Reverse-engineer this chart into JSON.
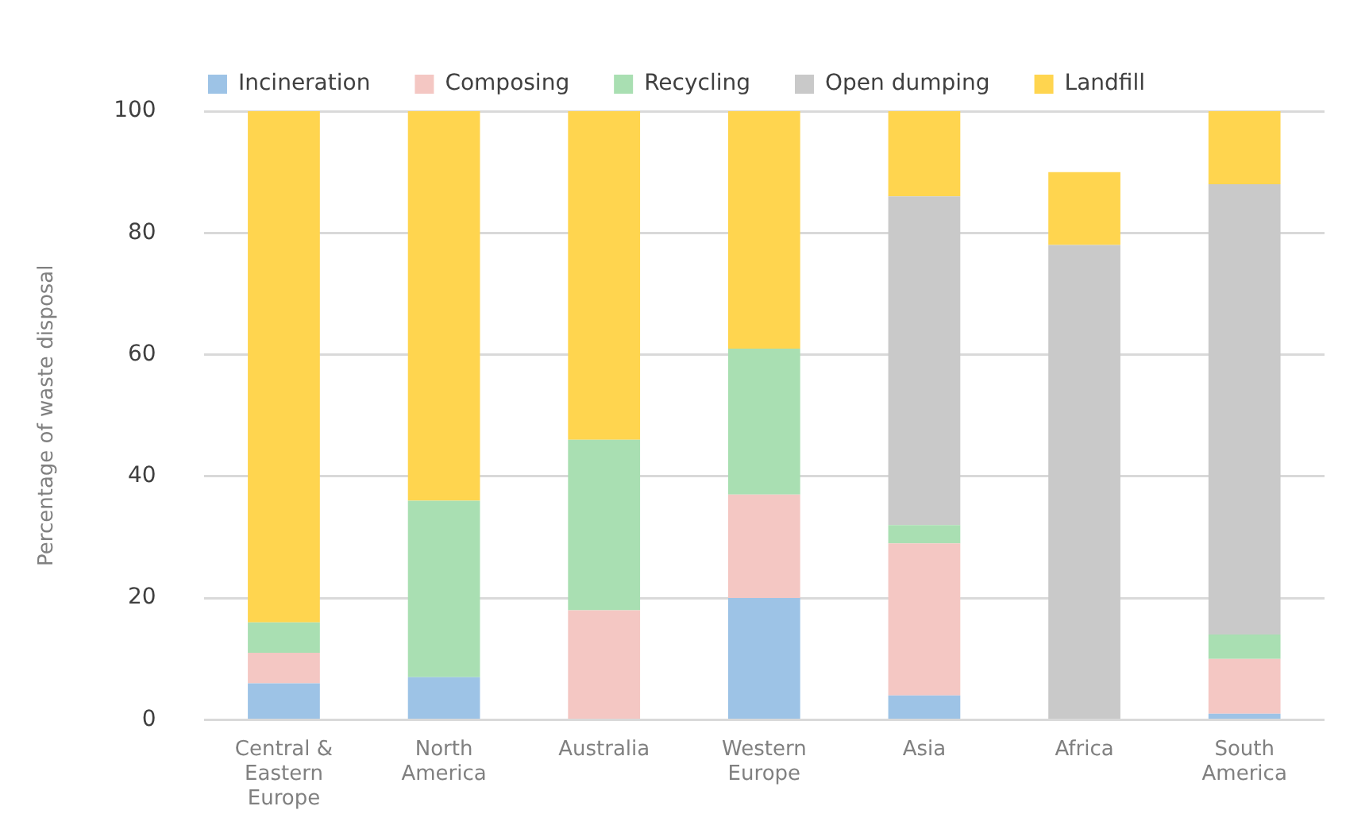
{
  "chart_data": {
    "type": "bar",
    "stacked": true,
    "ylabel": "Percentage of waste disposal",
    "categories": [
      "Central & Eastern Europe",
      "North America",
      "Australia",
      "Western Europe",
      "Asia",
      "Africa",
      "South America"
    ],
    "series": [
      {
        "name": "Incineration",
        "color": "#9dc3e6",
        "values": [
          6,
          7,
          0,
          20,
          4,
          0,
          1
        ]
      },
      {
        "name": "Composing",
        "color": "#f4c7c3",
        "values": [
          5,
          0,
          18,
          17,
          25,
          0,
          9
        ]
      },
      {
        "name": "Recycling",
        "color": "#a9dfb2",
        "values": [
          5,
          29,
          28,
          24,
          3,
          0,
          4
        ]
      },
      {
        "name": "Open dumping",
        "color": "#c9c9c9",
        "values": [
          0,
          0,
          0,
          0,
          54,
          78,
          74
        ]
      },
      {
        "name": "Landfill",
        "color": "#ffd54f",
        "values": [
          84,
          64,
          54,
          39,
          14,
          12,
          12
        ]
      }
    ],
    "ylim": [
      0,
      100
    ],
    "yticks": [
      0,
      20,
      40,
      60,
      80,
      100
    ],
    "grid": "y",
    "legend": "top"
  }
}
